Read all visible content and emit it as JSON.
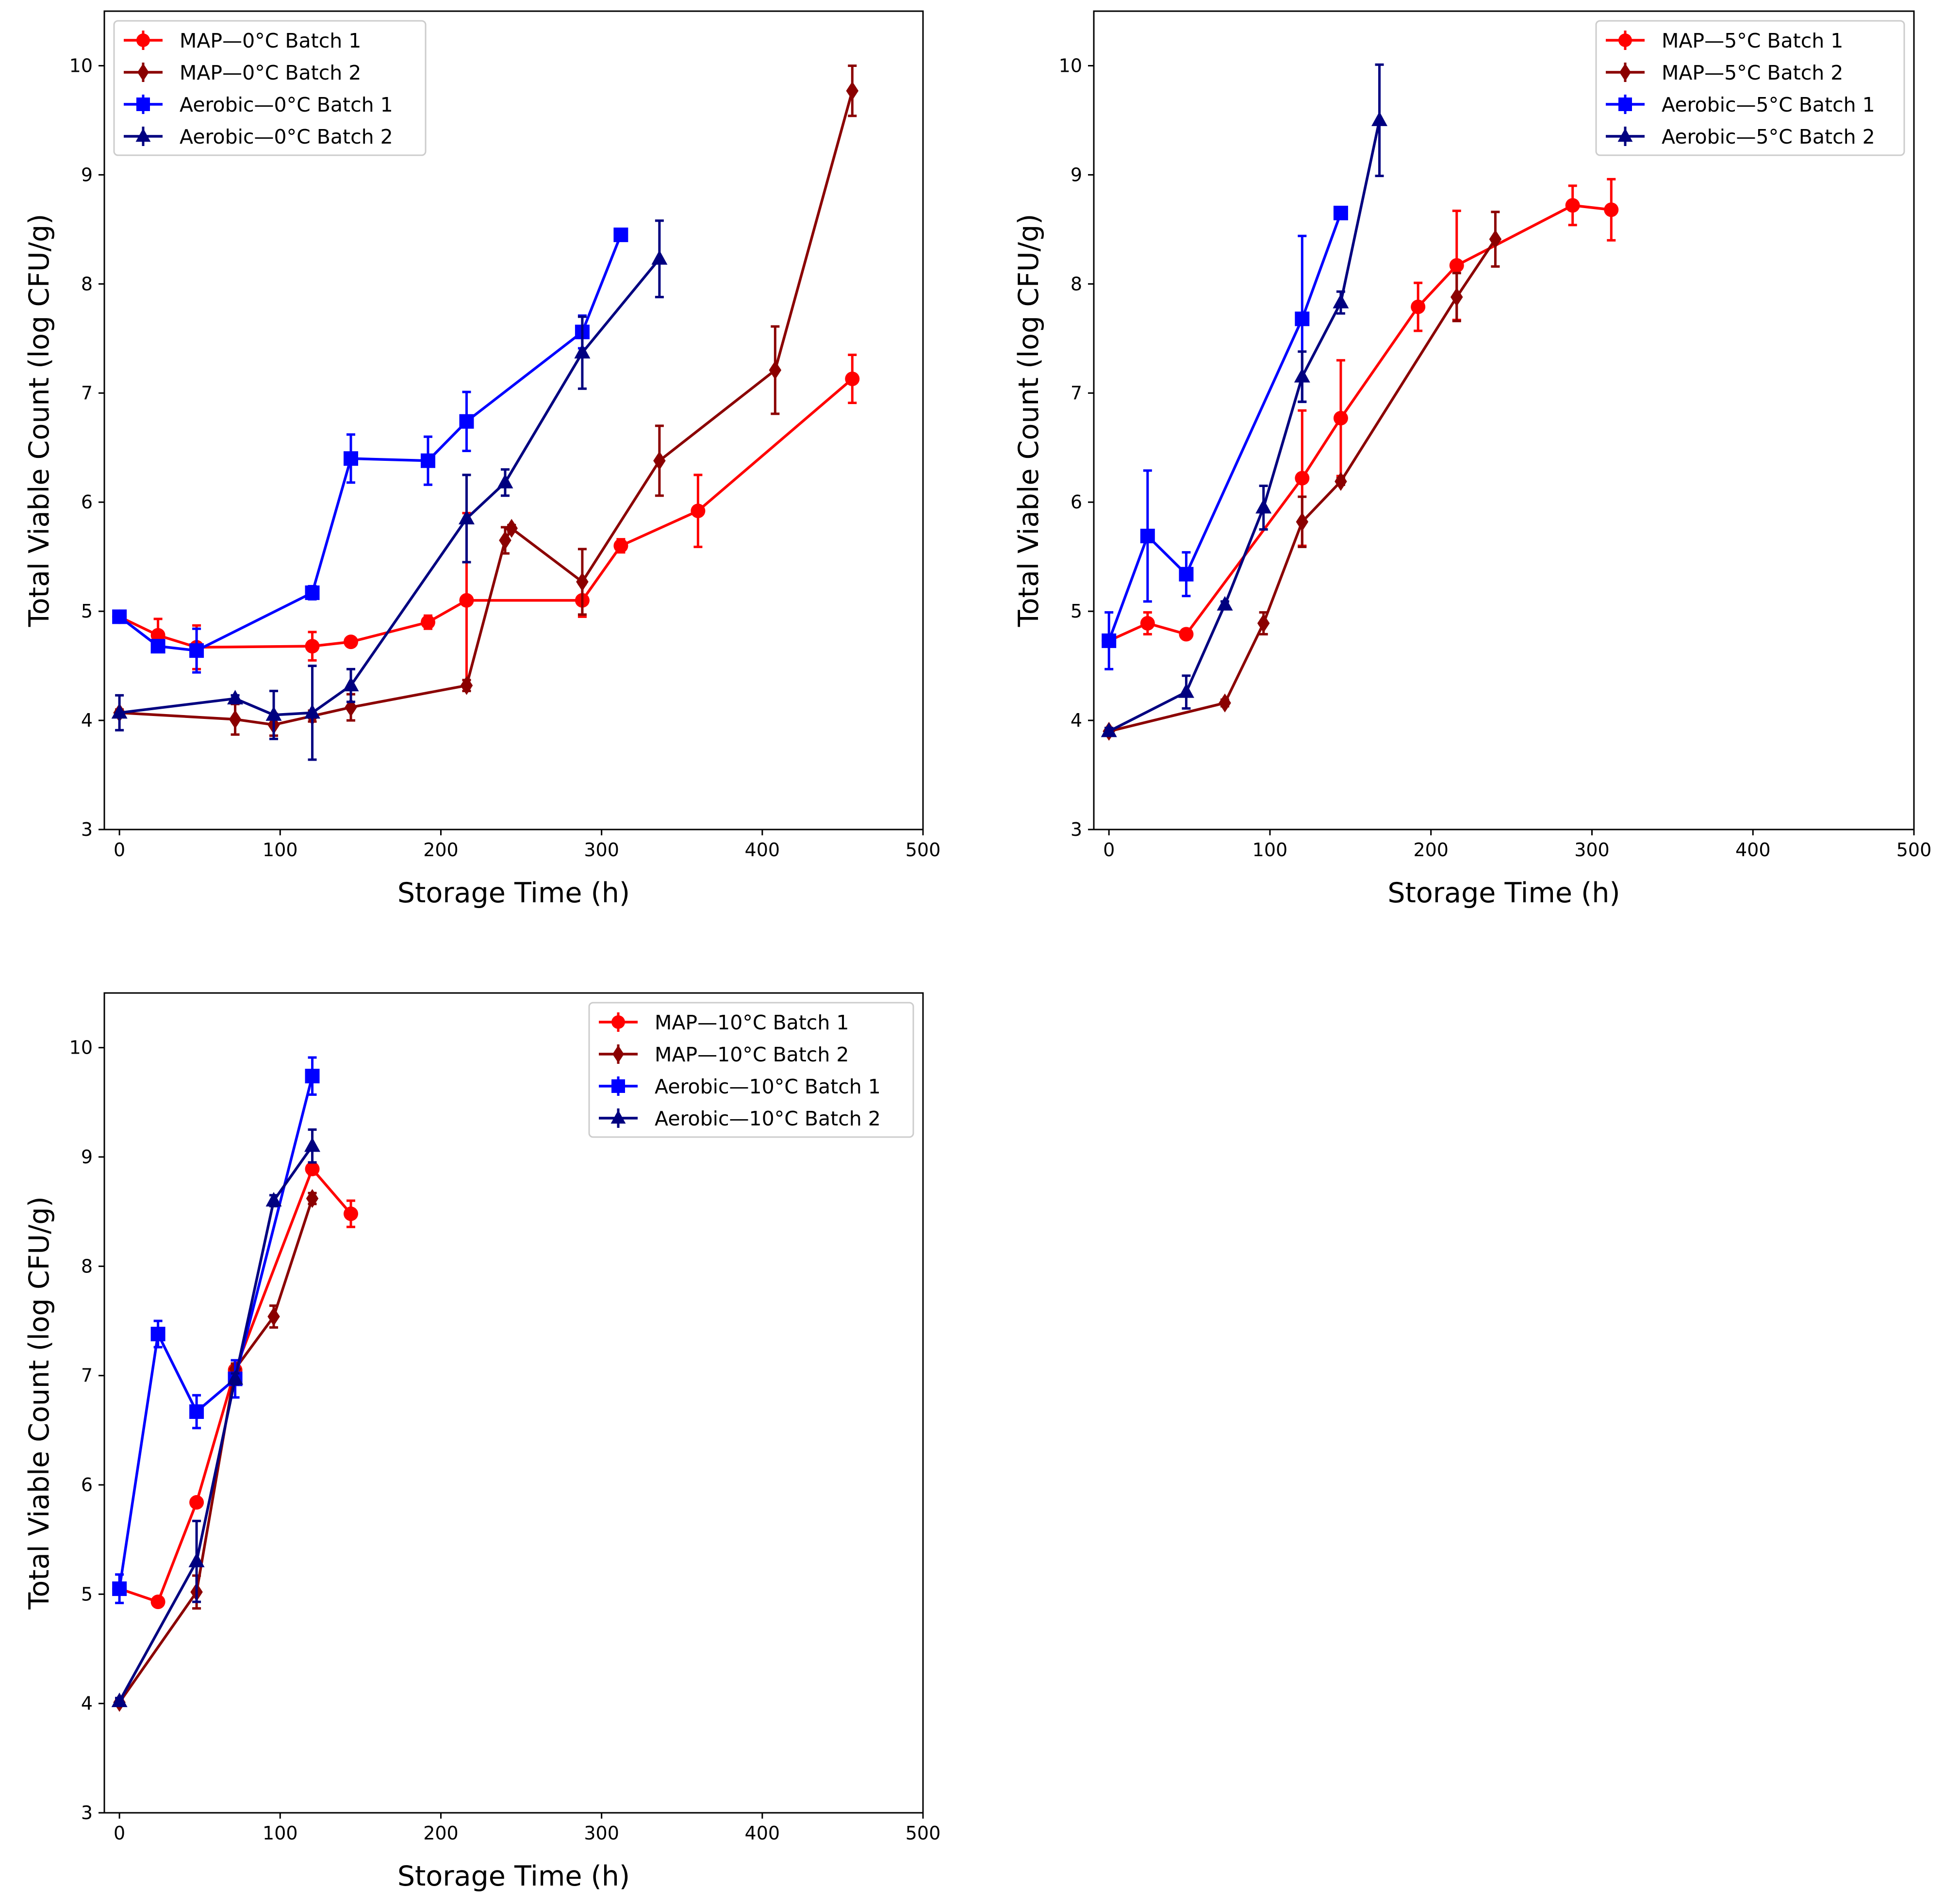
{
  "chart_data": [
    {
      "type": "line",
      "title": "",
      "xlabel": "Storage Time (h)",
      "ylabel": "Total Viable Count (log CFU/g)",
      "xlim": [
        -9.4,
        500
      ],
      "ylim": [
        3,
        10.5
      ],
      "xticks": [
        0,
        100,
        200,
        300,
        400,
        500
      ],
      "yticks": [
        3,
        4,
        5,
        6,
        7,
        8,
        9,
        10
      ],
      "grid": false,
      "legend_position": "upper left",
      "series": [
        {
          "name": "MAP—0°C Batch 1",
          "color": "#ff0000",
          "marker": "circle",
          "x": [
            0,
            24,
            48,
            120,
            144,
            192,
            216,
            288,
            312,
            360,
            456
          ],
          "y": [
            4.95,
            4.78,
            4.67,
            4.68,
            4.72,
            4.9,
            5.1,
            5.1,
            5.6,
            5.92,
            7.13
          ],
          "err": [
            0.05,
            0.15,
            0.2,
            0.13,
            0.03,
            0.06,
            0.8,
            0.15,
            0.06,
            0.33,
            0.22
          ]
        },
        {
          "name": "MAP—0°C Batch 2",
          "color": "#8b0000",
          "marker": "diamond",
          "x": [
            0,
            72,
            96,
            120,
            144,
            216,
            240,
            244,
            288,
            336,
            408,
            456
          ],
          "y": [
            4.07,
            4.01,
            3.96,
            4.04,
            4.12,
            4.32,
            5.65,
            5.76,
            5.27,
            6.38,
            7.21,
            9.77
          ],
          "err": [
            0.03,
            0.14,
            0.1,
            0.05,
            0.12,
            0.05,
            0.12,
            0.03,
            0.3,
            0.32,
            0.4,
            0.23
          ]
        },
        {
          "name": "Aerobic—0°C Batch 1",
          "color": "#0000ff",
          "marker": "square",
          "x": [
            0,
            24,
            48,
            120,
            144,
            192,
            216,
            288,
            312
          ],
          "y": [
            4.95,
            4.68,
            4.64,
            5.17,
            6.4,
            6.38,
            6.74,
            7.56,
            8.45
          ],
          "err": [
            0.05,
            0.03,
            0.2,
            0.06,
            0.22,
            0.22,
            0.27,
            0.15,
            0.03
          ]
        },
        {
          "name": "Aerobic—0°C Batch 2",
          "color": "#000080",
          "marker": "triangle",
          "x": [
            0,
            72,
            96,
            120,
            144,
            216,
            240,
            288,
            336
          ],
          "y": [
            4.07,
            4.2,
            4.05,
            4.07,
            4.32,
            5.85,
            6.18,
            7.37,
            8.23
          ],
          "err": [
            0.16,
            0.03,
            0.22,
            0.43,
            0.15,
            0.4,
            0.12,
            0.33,
            0.35
          ]
        }
      ]
    },
    {
      "type": "line",
      "title": "",
      "xlabel": "Storage Time (h)",
      "ylabel": "Total Viable Count (log CFU/g)",
      "xlim": [
        -9.4,
        500
      ],
      "ylim": [
        3,
        10.5
      ],
      "xticks": [
        0,
        100,
        200,
        300,
        400,
        500
      ],
      "yticks": [
        3,
        4,
        5,
        6,
        7,
        8,
        9,
        10
      ],
      "grid": false,
      "legend_position": "upper right",
      "series": [
        {
          "name": "MAP—5°C Batch 1",
          "color": "#ff0000",
          "marker": "circle",
          "x": [
            0,
            24,
            48,
            120,
            144,
            192,
            216,
            288,
            312
          ],
          "y": [
            4.73,
            4.89,
            4.79,
            6.22,
            6.77,
            7.79,
            8.17,
            8.72,
            8.68
          ],
          "err": [
            0.05,
            0.1,
            0.03,
            0.62,
            0.53,
            0.22,
            0.5,
            0.18,
            0.28
          ]
        },
        {
          "name": "MAP—5°C Batch 2",
          "color": "#8b0000",
          "marker": "diamond",
          "x": [
            0,
            72,
            96,
            120,
            144,
            216,
            240
          ],
          "y": [
            3.9,
            4.16,
            4.89,
            5.82,
            6.19,
            7.88,
            8.41
          ],
          "err": [
            0.03,
            0.03,
            0.1,
            0.23,
            0.03,
            0.22,
            0.25
          ]
        },
        {
          "name": "Aerobic—5°C Batch 1",
          "color": "#0000ff",
          "marker": "square",
          "x": [
            0,
            24,
            48,
            120,
            144
          ],
          "y": [
            4.73,
            5.69,
            5.34,
            7.68,
            8.65
          ],
          "err": [
            0.26,
            0.6,
            0.2,
            0.76,
            0.03
          ]
        },
        {
          "name": "Aerobic—5°C Batch 2",
          "color": "#000080",
          "marker": "triangle",
          "x": [
            0,
            48,
            72,
            96,
            120,
            144,
            168
          ],
          "y": [
            3.9,
            4.26,
            5.06,
            5.95,
            7.15,
            7.83,
            9.5
          ],
          "err": [
            0.03,
            0.15,
            0.03,
            0.2,
            0.23,
            0.1,
            0.51
          ]
        }
      ]
    },
    {
      "type": "line",
      "title": "",
      "xlabel": "Storage Time (h)",
      "ylabel": "Total Viable Count (log CFU/g)",
      "xlim": [
        -9.4,
        500
      ],
      "ylim": [
        3,
        10.5
      ],
      "xticks": [
        0,
        100,
        200,
        300,
        400,
        500
      ],
      "yticks": [
        3,
        4,
        5,
        6,
        7,
        8,
        9,
        10
      ],
      "grid": false,
      "legend_position": "upper right",
      "series": [
        {
          "name": "MAP—10°C Batch 1",
          "color": "#ff0000",
          "marker": "circle",
          "x": [
            0,
            24,
            48,
            72,
            120,
            144
          ],
          "y": [
            5.05,
            4.93,
            5.84,
            7.05,
            8.89,
            8.48
          ],
          "err": [
            0.05,
            0.03,
            0.03,
            0.05,
            0.05,
            0.12
          ]
        },
        {
          "name": "MAP—10°C Batch 2",
          "color": "#8b0000",
          "marker": "diamond",
          "x": [
            0,
            48,
            72,
            96,
            120
          ],
          "y": [
            4.01,
            5.02,
            7.06,
            7.54,
            8.62
          ],
          "err": [
            0.03,
            0.15,
            0.05,
            0.1,
            0.05
          ]
        },
        {
          "name": "Aerobic—10°C Batch 1",
          "color": "#0000ff",
          "marker": "square",
          "x": [
            0,
            24,
            48,
            72,
            120
          ],
          "y": [
            5.05,
            7.38,
            6.67,
            6.97,
            9.74
          ],
          "err": [
            0.13,
            0.12,
            0.15,
            0.17,
            0.17
          ]
        },
        {
          "name": "Aerobic—10°C Batch 2",
          "color": "#000080",
          "marker": "triangle",
          "x": [
            0,
            48,
            72,
            96,
            120
          ],
          "y": [
            4.02,
            5.3,
            6.97,
            8.6,
            9.1
          ],
          "err": [
            0.03,
            0.37,
            0.05,
            0.05,
            0.15
          ]
        }
      ]
    }
  ]
}
